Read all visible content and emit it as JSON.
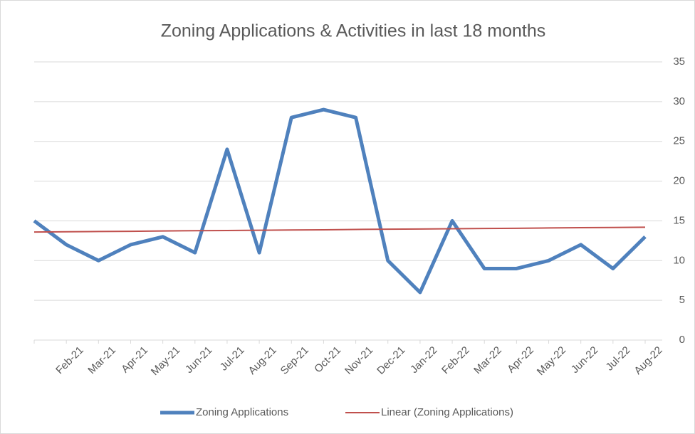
{
  "chart_data": {
    "type": "line",
    "title": "Zoning Applications & Activities in last 18 months",
    "categories": [
      null,
      "Feb-21",
      "Mar-21",
      "Apr-21",
      "May-21",
      "Jun-21",
      "Jul-21",
      "Aug-21",
      "Sep-21",
      "Oct-21",
      "Nov-21",
      "Dec-21",
      "Jan-22",
      "Feb-22",
      "Mar-22",
      "Apr-22",
      "May-22",
      "Jun-22",
      "Jul-22",
      "Aug-22"
    ],
    "series": [
      {
        "name": "Zoning Applications",
        "color": "#4f81bd",
        "values": [
          15,
          12,
          10,
          12,
          13,
          11,
          24,
          11,
          28,
          29,
          28,
          10,
          6,
          15,
          9,
          9,
          10,
          12,
          9,
          13
        ]
      },
      {
        "name": "Linear (Zoning Applications)",
        "color": "#c0504d",
        "values": [
          13.6,
          13.63,
          13.66,
          13.69,
          13.73,
          13.76,
          13.79,
          13.82,
          13.85,
          13.88,
          13.92,
          13.95,
          13.98,
          14.01,
          14.04,
          14.07,
          14.11,
          14.14,
          14.17,
          14.2
        ]
      }
    ],
    "ylim": [
      0,
      35
    ],
    "yticks": [
      0,
      5,
      10,
      15,
      20,
      25,
      30,
      35
    ],
    "grid": true,
    "legend": "bottom"
  }
}
